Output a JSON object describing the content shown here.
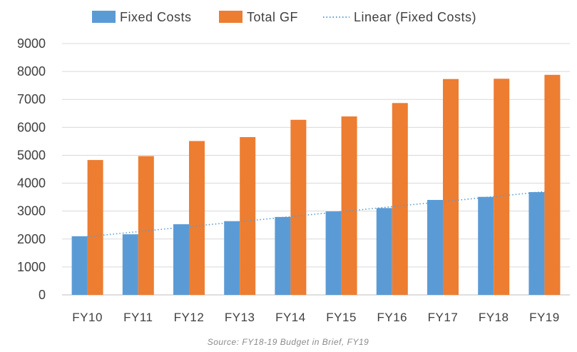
{
  "chart_data": {
    "type": "bar",
    "title": "",
    "xlabel": "",
    "ylabel": "",
    "categories": [
      "FY10",
      "FY11",
      "FY12",
      "FY13",
      "FY14",
      "FY15",
      "FY16",
      "FY17",
      "FY18",
      "FY19"
    ],
    "series": [
      {
        "name": "Fixed Costs",
        "color": "#5b9bd5",
        "values": [
          2100,
          2170,
          2530,
          2640,
          2790,
          2990,
          3110,
          3400,
          3510,
          3680
        ]
      },
      {
        "name": "Total GF",
        "color": "#ed7d31",
        "values": [
          4830,
          4970,
          5510,
          5650,
          6270,
          6390,
          6870,
          7730,
          7740,
          7880
        ]
      }
    ],
    "trendline": {
      "name": "Linear (Fixed Costs)",
      "type": "linear",
      "series": "Fixed Costs",
      "color": "#5b9bd5"
    },
    "ylim": [
      0,
      9000
    ],
    "yticks": [
      0,
      1000,
      2000,
      3000,
      4000,
      5000,
      6000,
      7000,
      8000,
      9000
    ],
    "grid": true,
    "legend_position": "top",
    "source": "Source:  FY18-19 Budget in Brief, FY19"
  }
}
